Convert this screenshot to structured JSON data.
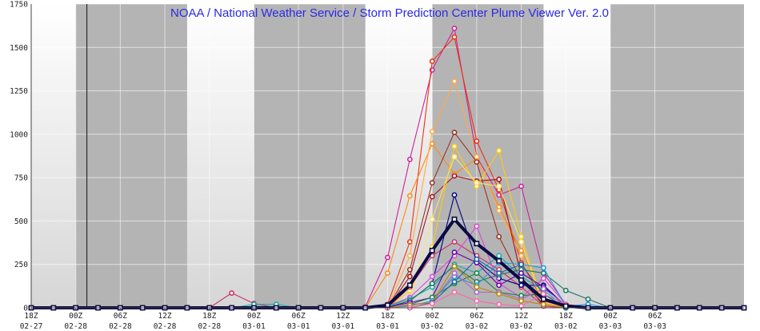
{
  "chart_data": {
    "type": "line",
    "title": "NOAA / National Weather Service / Storm Prediction Center Plume Viewer Ver. 2.0",
    "ylim": [
      0,
      1750
    ],
    "y_ticks": [
      0,
      250,
      500,
      750,
      1000,
      1250,
      1500,
      1750
    ],
    "x_range_hours": [
      0,
      96
    ],
    "x_tick_step_hours": 6,
    "x_tick_labels": [
      {
        "time": "18Z",
        "date": "02-27"
      },
      {
        "time": "00Z",
        "date": "02-28"
      },
      {
        "time": "06Z",
        "date": "02-28"
      },
      {
        "time": "12Z",
        "date": "02-28"
      },
      {
        "time": "18Z",
        "date": "02-28"
      },
      {
        "time": "00Z",
        "date": "03-01"
      },
      {
        "time": "06Z",
        "date": "03-01"
      },
      {
        "time": "12Z",
        "date": "03-01"
      },
      {
        "time": "18Z",
        "date": "03-01"
      },
      {
        "time": "00Z",
        "date": "03-02"
      },
      {
        "time": "06Z",
        "date": "03-02"
      },
      {
        "time": "12Z",
        "date": "03-02"
      },
      {
        "time": "18Z",
        "date": "03-02"
      },
      {
        "time": "00Z",
        "date": "03-03"
      },
      {
        "time": "06Z",
        "date": "03-03"
      }
    ],
    "night_bands_hours": [
      [
        6,
        21
      ],
      [
        30,
        45
      ],
      [
        54,
        69
      ],
      [
        78,
        96
      ]
    ],
    "current_time_hour": 7.5,
    "x_hours": [
      0,
      3,
      6,
      9,
      12,
      15,
      18,
      21,
      24,
      27,
      30,
      33,
      36,
      39,
      42,
      45,
      48,
      51,
      54,
      57,
      60,
      63,
      66,
      69,
      72,
      75,
      78,
      81,
      84,
      87,
      90,
      93,
      96
    ],
    "series": [
      {
        "color": "#cc2299",
        "values": [
          0,
          0,
          0,
          0,
          0,
          0,
          0,
          0,
          0,
          0,
          0,
          0,
          0,
          0,
          0,
          5,
          290,
          855,
          1370,
          1610,
          870,
          650,
          700,
          200,
          20,
          5,
          0,
          0,
          0,
          0,
          0,
          0,
          0
        ]
      },
      {
        "color": "#ee3311",
        "values": [
          0,
          0,
          0,
          0,
          0,
          0,
          0,
          0,
          0,
          0,
          0,
          0,
          0,
          0,
          0,
          0,
          20,
          380,
          1420,
          1560,
          960,
          680,
          260,
          40,
          5,
          0,
          0,
          0,
          0,
          0,
          0,
          0,
          0
        ]
      },
      {
        "color": "#ff8811",
        "values": [
          0,
          0,
          0,
          0,
          0,
          0,
          0,
          0,
          0,
          0,
          0,
          0,
          0,
          0,
          0,
          0,
          200,
          645,
          945,
          770,
          860,
          580,
          330,
          60,
          5,
          0,
          0,
          0,
          0,
          0,
          0,
          0,
          0
        ]
      },
      {
        "color": "#ffaa44",
        "values": [
          0,
          0,
          0,
          0,
          0,
          0,
          0,
          0,
          0,
          0,
          0,
          0,
          0,
          0,
          0,
          0,
          0,
          300,
          1015,
          1305,
          870,
          560,
          300,
          30,
          0,
          0,
          0,
          0,
          0,
          0,
          0,
          0,
          0
        ]
      },
      {
        "color": "#993322",
        "values": [
          0,
          0,
          0,
          0,
          0,
          0,
          0,
          0,
          0,
          0,
          0,
          0,
          0,
          0,
          0,
          0,
          0,
          220,
          720,
          1010,
          840,
          410,
          160,
          20,
          0,
          0,
          0,
          0,
          0,
          0,
          0,
          0,
          0
        ]
      },
      {
        "color": "#aa1111",
        "values": [
          0,
          0,
          0,
          0,
          0,
          0,
          0,
          0,
          0,
          0,
          0,
          0,
          0,
          0,
          0,
          0,
          0,
          180,
          640,
          760,
          730,
          740,
          180,
          10,
          0,
          0,
          0,
          0,
          0,
          0,
          0,
          0,
          0
        ]
      },
      {
        "color": "#ffcc11",
        "values": [
          0,
          0,
          0,
          0,
          0,
          0,
          0,
          0,
          0,
          0,
          0,
          0,
          0,
          0,
          0,
          0,
          0,
          100,
          350,
          930,
          700,
          905,
          410,
          20,
          0,
          0,
          0,
          0,
          0,
          0,
          0,
          0,
          0
        ]
      },
      {
        "color": "#ffe066",
        "values": [
          0,
          0,
          0,
          0,
          0,
          0,
          0,
          0,
          0,
          0,
          0,
          0,
          0,
          0,
          0,
          0,
          0,
          50,
          510,
          870,
          720,
          700,
          380,
          10,
          0,
          0,
          0,
          0,
          0,
          0,
          0,
          0,
          0
        ]
      },
      {
        "color": "#cc3366",
        "values": [
          0,
          0,
          0,
          0,
          0,
          0,
          0,
          0,
          0,
          85,
          25,
          0,
          0,
          0,
          0,
          0,
          0,
          120,
          300,
          380,
          300,
          220,
          120,
          10,
          0,
          0,
          0,
          0,
          0,
          0,
          0,
          0,
          0
        ]
      },
      {
        "color": "#000088",
        "values": [
          0,
          0,
          0,
          0,
          0,
          0,
          0,
          0,
          0,
          0,
          0,
          0,
          0,
          0,
          0,
          0,
          0,
          40,
          140,
          650,
          270,
          170,
          130,
          130,
          10,
          0,
          0,
          0,
          0,
          0,
          0,
          0,
          0
        ]
      },
      {
        "color": "#dd44dd",
        "values": [
          0,
          0,
          0,
          0,
          0,
          0,
          0,
          0,
          0,
          0,
          0,
          0,
          0,
          0,
          0,
          0,
          10,
          60,
          180,
          300,
          470,
          140,
          60,
          170,
          20,
          0,
          0,
          0,
          0,
          0,
          0,
          0,
          0
        ]
      },
      {
        "color": "#11aaaa",
        "values": [
          0,
          0,
          0,
          0,
          0,
          0,
          0,
          0,
          0,
          0,
          20,
          20,
          0,
          0,
          0,
          0,
          10,
          50,
          120,
          250,
          200,
          300,
          180,
          100,
          5,
          0,
          0,
          0,
          0,
          0,
          0,
          0,
          0
        ]
      },
      {
        "color": "#227766",
        "values": [
          0,
          0,
          0,
          0,
          0,
          0,
          0,
          0,
          0,
          0,
          0,
          0,
          0,
          0,
          0,
          0,
          5,
          40,
          140,
          240,
          150,
          190,
          220,
          200,
          100,
          50,
          0,
          0,
          0,
          0,
          0,
          0,
          0
        ]
      },
      {
        "color": "#6600aa",
        "values": [
          0,
          0,
          0,
          0,
          0,
          0,
          0,
          0,
          0,
          0,
          0,
          0,
          0,
          0,
          0,
          0,
          5,
          30,
          60,
          320,
          260,
          130,
          200,
          120,
          10,
          0,
          0,
          0,
          0,
          0,
          0,
          0,
          0
        ]
      },
      {
        "color": "#118844",
        "values": [
          0,
          0,
          0,
          0,
          0,
          0,
          0,
          0,
          0,
          0,
          0,
          0,
          0,
          0,
          0,
          0,
          0,
          20,
          60,
          140,
          200,
          90,
          70,
          80,
          0,
          0,
          0,
          0,
          0,
          0,
          0,
          0,
          0
        ]
      },
      {
        "color": "#2299dd",
        "values": [
          0,
          0,
          0,
          0,
          0,
          0,
          0,
          0,
          0,
          0,
          0,
          0,
          0,
          0,
          0,
          0,
          0,
          10,
          40,
          180,
          130,
          260,
          250,
          230,
          10,
          20,
          0,
          0,
          0,
          0,
          0,
          0,
          0
        ]
      },
      {
        "color": "#aa66cc",
        "values": [
          0,
          0,
          0,
          0,
          0,
          0,
          0,
          0,
          0,
          0,
          0,
          0,
          0,
          0,
          0,
          0,
          0,
          20,
          30,
          200,
          90,
          90,
          50,
          110,
          20,
          0,
          0,
          0,
          0,
          0,
          0,
          0,
          0
        ]
      },
      {
        "color": "#bb8800",
        "values": [
          0,
          0,
          0,
          0,
          0,
          0,
          0,
          0,
          0,
          0,
          0,
          0,
          0,
          0,
          0,
          0,
          0,
          15,
          30,
          240,
          120,
          80,
          40,
          20,
          0,
          0,
          0,
          0,
          0,
          0,
          0,
          0,
          0
        ]
      },
      {
        "color": "#1166aa",
        "values": [
          0,
          0,
          0,
          0,
          0,
          0,
          0,
          0,
          0,
          0,
          0,
          0,
          0,
          0,
          0,
          0,
          0,
          0,
          30,
          150,
          280,
          200,
          250,
          80,
          0,
          0,
          0,
          0,
          0,
          0,
          0,
          0,
          0
        ]
      },
      {
        "color": "#ff66aa",
        "values": [
          0,
          0,
          0,
          0,
          0,
          0,
          0,
          0,
          0,
          0,
          0,
          0,
          0,
          0,
          0,
          0,
          0,
          0,
          25,
          90,
          40,
          20,
          10,
          80,
          20,
          0,
          0,
          0,
          0,
          0,
          0,
          0,
          0
        ]
      }
    ],
    "mean_series": {
      "color": "#0a0a44",
      "values": [
        0,
        0,
        0,
        0,
        0,
        0,
        0,
        0,
        0,
        0,
        0,
        0,
        0,
        0,
        0,
        0,
        15,
        130,
        330,
        510,
        370,
        270,
        160,
        50,
        10,
        0,
        0,
        0,
        0,
        0,
        0,
        0,
        0
      ]
    }
  }
}
